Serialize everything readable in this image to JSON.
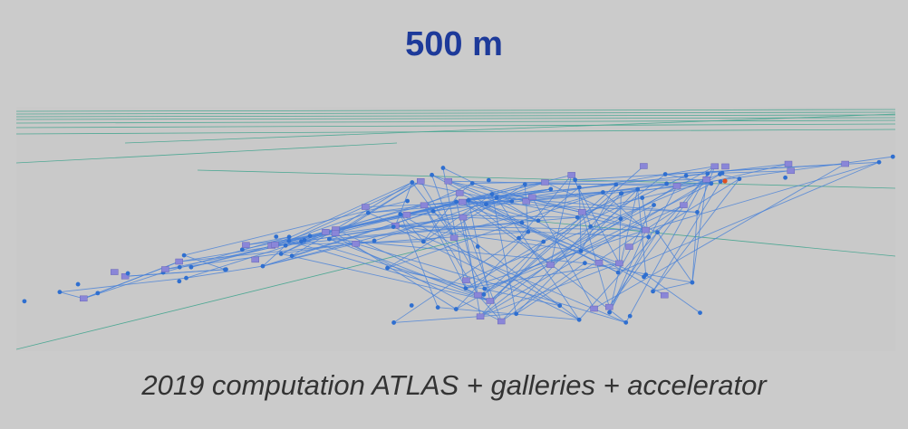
{
  "title": "500 m",
  "caption": "2019 computation ATLAS + galleries + accelerator"
}
